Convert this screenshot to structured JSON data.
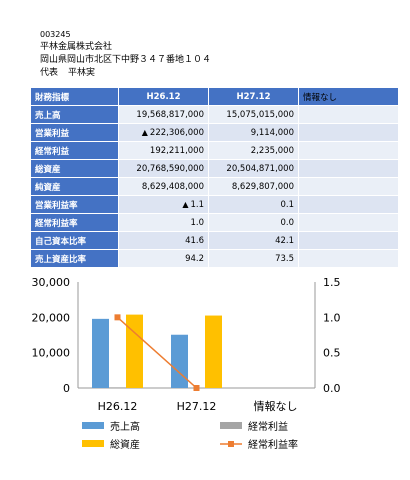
{
  "company": {
    "code": "003245",
    "name": "平林金属株式会社",
    "address": "岡山県岡山市北区下中野３４７番地１０４",
    "rep_label": "代表",
    "rep_name": "平林実"
  },
  "table": {
    "header": [
      "財務指標",
      "H26.12",
      "H27.12",
      "情報なし"
    ],
    "rows": [
      {
        "label": "売上高",
        "p1": "19,568,817,000",
        "p2": "15,075,015,000",
        "p1_negative": false
      },
      {
        "label": "営業利益",
        "p1": "222,306,000",
        "p2": "9,114,000",
        "p1_negative": true
      },
      {
        "label": "経常利益",
        "p1": "192,211,000",
        "p2": "2,235,000",
        "p1_negative": false
      },
      {
        "label": "総資産",
        "p1": "20,768,590,000",
        "p2": "20,504,871,000",
        "p1_negative": false
      },
      {
        "label": "純資産",
        "p1": "8,629,408,000",
        "p2": "8,629,807,000",
        "p1_negative": false
      },
      {
        "label": "営業利益率",
        "p1": "1.1",
        "p2": "0.1",
        "p1_negative": true
      },
      {
        "label": "経常利益率",
        "p1": "1.0",
        "p2": "0.0",
        "p1_negative": false
      },
      {
        "label": "自己資本比率",
        "p1": "41.6",
        "p2": "42.1",
        "p1_negative": false
      },
      {
        "label": "売上資産比率",
        "p1": "94.2",
        "p2": "73.5",
        "p1_negative": false
      }
    ],
    "negative_marker": "▲"
  },
  "chart_data": {
    "type": "bar",
    "categories": [
      "H26.12",
      "H27.12",
      "情報なし"
    ],
    "y_left": {
      "min": 0,
      "max": 30000,
      "ticks": [
        "0",
        "10,000",
        "20,000",
        "30,000"
      ]
    },
    "y_right": {
      "min": 0,
      "max": 1.5,
      "ticks": [
        "0.0",
        "0.5",
        "1.0",
        "1.5"
      ]
    },
    "series": [
      {
        "name": "売上高",
        "kind": "bar",
        "axis": "left",
        "color": "#5b9bd5",
        "values": [
          19569,
          15075,
          null
        ]
      },
      {
        "name": "経常利益",
        "kind": "bar",
        "axis": "left",
        "color": "#a5a5a5",
        "values": [
          192,
          2,
          null
        ]
      },
      {
        "name": "総資産",
        "kind": "bar",
        "axis": "left",
        "color": "#ffc000",
        "values": [
          20769,
          20505,
          null
        ]
      },
      {
        "name": "経常利益率",
        "kind": "line",
        "axis": "right",
        "color": "#ed7d31",
        "values": [
          1.0,
          0.0,
          null
        ]
      }
    ],
    "legend_position": "bottom",
    "grid": false
  }
}
